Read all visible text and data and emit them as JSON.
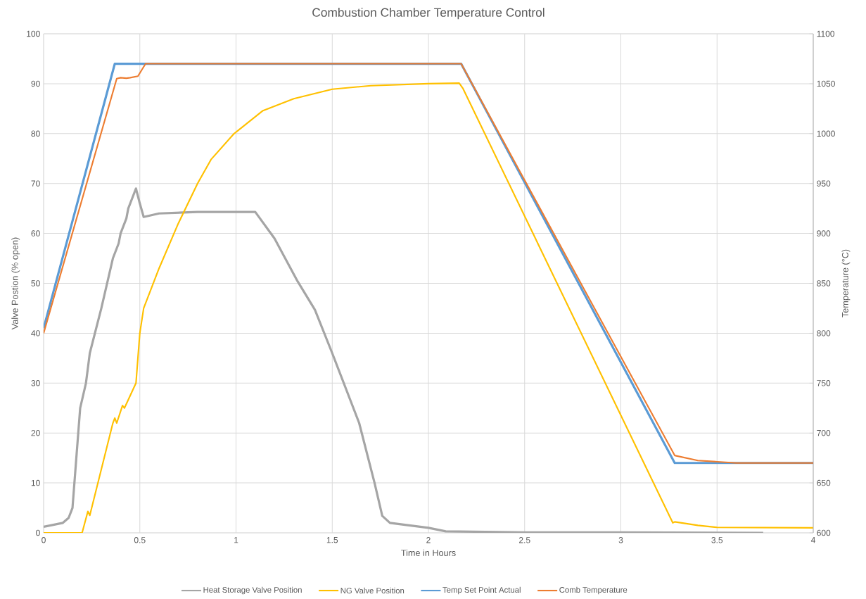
{
  "chart_data": {
    "type": "line",
    "title": "Combustion Chamber Temperature Control",
    "xlabel": "Time in Hours",
    "ylabel": "Valve Postion (% open)",
    "y2label": "Temperature (°C)",
    "xlim": [
      0,
      4
    ],
    "xticks": [
      0,
      0.5,
      1,
      1.5,
      2,
      2.5,
      3,
      3.5,
      4
    ],
    "ylim": [
      0,
      100
    ],
    "yticks": [
      0,
      10,
      20,
      30,
      40,
      50,
      60,
      70,
      80,
      90,
      100
    ],
    "y2lim": [
      600,
      1100
    ],
    "y2ticks": [
      600,
      650,
      700,
      750,
      800,
      850,
      900,
      950,
      1000,
      1050,
      1100
    ],
    "grid": true,
    "legend": "bottom",
    "line_style": "solid",
    "marker": "none",
    "series": [
      {
        "name": "Heat Storage Valve Position",
        "color": "#a5a5a5",
        "x": [
          0,
          0.1,
          0.13,
          0.15,
          0.17,
          0.19,
          0.22,
          0.24,
          0.3,
          0.36,
          0.39,
          0.4,
          0.43,
          0.44,
          0.48,
          0.5,
          0.52,
          0.6,
          0.8,
          1.0,
          1.1,
          1.2,
          1.32,
          1.41,
          1.5,
          1.64,
          1.72,
          1.76,
          1.8,
          2.0,
          2.09,
          2.5,
          3.0,
          3.74
        ],
        "values": [
          1.2,
          2,
          3,
          5,
          15,
          25,
          30,
          36,
          45,
          55,
          58,
          60,
          63,
          65,
          69,
          66,
          63.3,
          64,
          64.3,
          64.3,
          64.3,
          59,
          50.4,
          44.7,
          36,
          22,
          10,
          3.4,
          2,
          1,
          0.3,
          0.1,
          0.1,
          0
        ]
      },
      {
        "name": "NG Valve Position",
        "color": "#ffc000",
        "x": [
          0,
          0.2,
          0.23,
          0.24,
          0.36,
          0.37,
          0.38,
          0.41,
          0.42,
          0.48,
          0.5,
          0.52,
          0.6,
          0.7,
          0.8,
          0.87,
          0.99,
          1.14,
          1.3,
          1.5,
          1.7,
          2.0,
          2.16,
          2.18,
          3.27,
          3.28,
          3.4,
          3.5,
          4
        ],
        "values": [
          0,
          0,
          4.3,
          3.5,
          22,
          23,
          22,
          25.5,
          25,
          30,
          40,
          45,
          53,
          62,
          70,
          74.8,
          80,
          84.6,
          87,
          88.9,
          89.6,
          90,
          90.1,
          89,
          2,
          2.2,
          1.5,
          1.1,
          1
        ]
      },
      {
        "name": "Temp Set Point Actual",
        "color": "#5b9bd5",
        "axis": "y2",
        "x": [
          0,
          0.37,
          2.17,
          3.28,
          4
        ],
        "values": [
          805,
          1070,
          1070,
          670,
          670
        ]
      },
      {
        "name": "Comb Temperature",
        "color": "#ed7d31",
        "axis": "y2",
        "x": [
          0,
          0.38,
          0.4,
          0.43,
          0.45,
          0.49,
          0.53,
          2.17,
          3.28,
          3.4,
          3.6,
          4
        ],
        "values": [
          800,
          1055,
          1056,
          1055.5,
          1056,
          1057.5,
          1070,
          1070,
          677.5,
          672.5,
          670,
          670
        ]
      }
    ]
  }
}
